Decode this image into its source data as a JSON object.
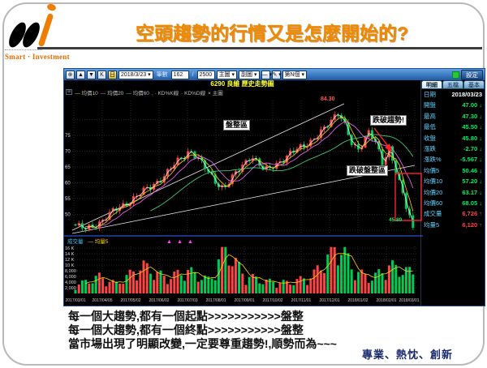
{
  "slide": {
    "title": "空頭趨勢的行情又是怎麼開始的?",
    "logo_text": "Smart · Investment",
    "motto": "專業、熱忱、創新",
    "body_lines": [
      "每一個大趨勢,都有一個起點>>>>>>>>>>>盤整",
      "每一個大趨勢,都有一個終點>>>>>>>>>>>盤整",
      "當市場出現了明顯改變,一定要尊重趨勢!,順勢而為~~~"
    ]
  },
  "app": {
    "toolbar": {
      "items": [
        {
          "t": "⊕",
          "k": "icon",
          "n": "zoom-icon"
        },
        {
          "t": "▲",
          "k": "icon",
          "n": "scroll-up-icon"
        },
        {
          "t": "▼",
          "k": "icon",
          "n": "scroll-down-icon"
        },
        {
          "t": "K",
          "k": "icon",
          "n": "kline-icon"
        },
        {
          "t": "日",
          "k": "icon-warn",
          "n": "daily-icon"
        },
        {
          "t": "2018/3/23 ▾",
          "k": "dropdown",
          "n": "date-dropdown"
        },
        {
          "t": "筆數",
          "k": "label",
          "n": "bars-label"
        },
        {
          "t": "162",
          "k": "field",
          "n": "bars-field"
        },
        {
          "t": "/",
          "k": "label",
          "n": "slash-label"
        },
        {
          "t": "2500",
          "k": "field",
          "n": "total-bars-field"
        },
        {
          "t": "主圖 ▾",
          "k": "dropdown",
          "n": "main-chart-dropdown"
        },
        {
          "t": "副圖 ▾",
          "k": "dropdown",
          "n": "sub-chart-dropdown"
        },
        {
          "t": "— ▾",
          "k": "icon",
          "n": "line-tool-dropdown"
        },
        {
          "t": "✎ ▾",
          "k": "icon",
          "n": "draw-tool-dropdown"
        },
        {
          "t": "第N個 ▾",
          "k": "dropdown",
          "n": "nth-dropdown"
        }
      ],
      "settings": "設定"
    },
    "chart_title": "6290 良維 歷史走勢圖",
    "tabs": [
      "明細",
      "五檔",
      "基本"
    ],
    "quote_rows": [
      {
        "label": "日期",
        "value": "2018/03/23",
        "dir": "none"
      },
      {
        "label": "開盤",
        "value": "47.00",
        "dir": "down"
      },
      {
        "label": "最高",
        "value": "47.30",
        "dir": "down"
      },
      {
        "label": "最低",
        "value": "45.50",
        "dir": "down"
      },
      {
        "label": "收盤",
        "value": "45.80",
        "dir": "down"
      },
      {
        "label": "漲跌",
        "value": "-2.70",
        "dir": "down"
      },
      {
        "label": "漲跌%",
        "value": "-5.567",
        "dir": "down"
      },
      {
        "label": "均價5",
        "value": "50.46",
        "dir": "down"
      },
      {
        "label": "均價10",
        "value": "57.20",
        "dir": "down"
      },
      {
        "label": "均價20",
        "value": "63.17",
        "dir": "down"
      },
      {
        "label": "均價60",
        "value": "68.05",
        "dir": "down"
      },
      {
        "label": "成交量",
        "value": "6,726",
        "dir": "up"
      },
      {
        "label": "均量5",
        "value": "6,120",
        "dir": "up"
      }
    ],
    "colors": {
      "up": "#ff4444",
      "down": "#00ee66",
      "none": "#ffffff"
    }
  },
  "chart_data": {
    "type": "candlestick+volume",
    "symbol": "6290 良維",
    "timeframe": "日線",
    "title": "6290 良維 歷史走勢圖",
    "legend_main": [
      {
        "pre": "—",
        "label": "均價10",
        "color": "#ffd400"
      },
      {
        "pre": "—",
        "label": "均價20",
        "color": "#ff66ff"
      },
      {
        "pre": "—",
        "label": "均價60",
        "color": "#44dd88"
      },
      {
        "pre": ", ·",
        "label": "KD%K線",
        "color": "#ff9900"
      },
      {
        "pre": "·",
        "label": "KD%D線",
        "color": "#33ccff"
      },
      {
        "pre": "×",
        "label": "主圖",
        "color": "#cccccc"
      }
    ],
    "legend_volume": [
      {
        "pre": "",
        "label": "成交量",
        "color": "#33ccff"
      },
      {
        "pre": "—",
        "label": "均量5",
        "color": "#ffd400"
      }
    ],
    "price_axis": [
      75,
      70,
      65,
      60,
      55,
      50
    ],
    "price_range": [
      44,
      86
    ],
    "volume_axis": [
      {
        "label": "16 K",
        "v": 16000
      },
      {
        "label": "14 K",
        "v": 14000
      },
      {
        "label": "12 K",
        "v": 12000
      },
      {
        "label": "10 K",
        "v": 10000
      },
      {
        "label": "8,000",
        "v": 8000
      },
      {
        "label": "6,000",
        "v": 6000
      },
      {
        "label": "4,000",
        "v": 4000
      },
      {
        "label": "2,000",
        "v": 2000
      }
    ],
    "dates": [
      "2017/03/01",
      "2017/04/05",
      "2017/05/02",
      "2017/06/02",
      "2017/07/03",
      "2017/08/01",
      "2017/09/01",
      "2017/10/02",
      "2017/11/01",
      "2017/12/01",
      "2018/01/02",
      "2018/02/01",
      "2018/03/01"
    ],
    "price_keyframes": [
      [
        0,
        46.5
      ],
      [
        0.03,
        45.2
      ],
      [
        0.07,
        47.5
      ],
      [
        0.12,
        51.5
      ],
      [
        0.17,
        55.0
      ],
      [
        0.22,
        58.5
      ],
      [
        0.27,
        63.0
      ],
      [
        0.31,
        67.5
      ],
      [
        0.34,
        70.5
      ],
      [
        0.37,
        66.5
      ],
      [
        0.41,
        61.0
      ],
      [
        0.44,
        58.2
      ],
      [
        0.48,
        63.5
      ],
      [
        0.52,
        69.0
      ],
      [
        0.56,
        63.5
      ],
      [
        0.6,
        66.5
      ],
      [
        0.65,
        70.0
      ],
      [
        0.7,
        73.5
      ],
      [
        0.74,
        77.0
      ],
      [
        0.78,
        83.0
      ],
      [
        0.8,
        78.0
      ],
      [
        0.82,
        71.5
      ],
      [
        0.84,
        70.0
      ],
      [
        0.87,
        77.0
      ],
      [
        0.89,
        73.0
      ],
      [
        0.91,
        65.5
      ],
      [
        0.93,
        70.5
      ],
      [
        0.95,
        64.0
      ],
      [
        0.97,
        57.0
      ],
      [
        0.985,
        50.5
      ],
      [
        1,
        45.8
      ]
    ],
    "volume_keyframes": [
      [
        0,
        2600
      ],
      [
        0.07,
        5500
      ],
      [
        0.12,
        3200
      ],
      [
        0.2,
        9000
      ],
      [
        0.27,
        5000
      ],
      [
        0.33,
        7500
      ],
      [
        0.4,
        4200
      ],
      [
        0.44,
        15500
      ],
      [
        0.5,
        6000
      ],
      [
        0.56,
        4000
      ],
      [
        0.63,
        3500
      ],
      [
        0.7,
        5500
      ],
      [
        0.78,
        16000
      ],
      [
        0.83,
        7000
      ],
      [
        0.88,
        5000
      ],
      [
        0.93,
        9000
      ],
      [
        1,
        6726
      ]
    ],
    "last_close": 45.8,
    "last_close_label": "45.80",
    "last_volume": 6726,
    "peak_label": "84.30",
    "annotations": [
      "盤整區",
      "跌破趨勢!",
      "跌破盤整區"
    ],
    "trend_lines": [
      [
        10,
        166,
        345,
        10
      ],
      [
        10,
        170,
        432,
        86
      ]
    ],
    "up_color": "#ff4444",
    "down_color": "#00cc55"
  }
}
